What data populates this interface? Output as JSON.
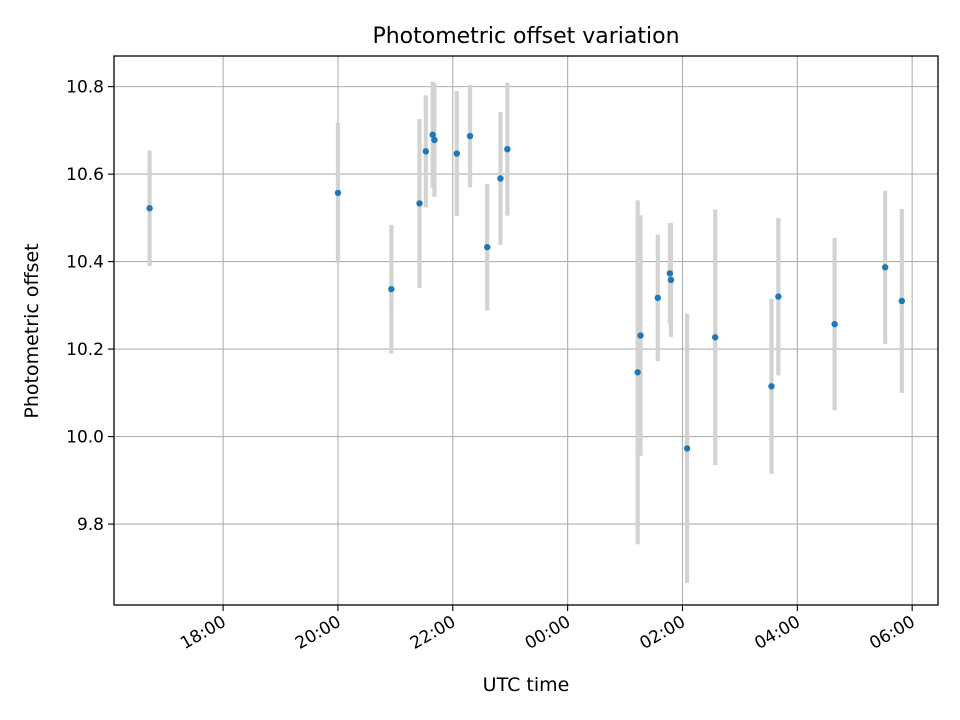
{
  "chart_data": {
    "type": "scatter",
    "title": "Photometric offset variation",
    "xlabel": "UTC time",
    "ylabel": "Photometric offset",
    "grid": true,
    "x_unit": "hours since 00:00 of the first day",
    "xlim": [
      16.1,
      30.45
    ],
    "ylim": [
      9.615,
      10.87
    ],
    "x_ticks": [
      {
        "value": 18,
        "label": "18:00"
      },
      {
        "value": 20,
        "label": "20:00"
      },
      {
        "value": 22,
        "label": "22:00"
      },
      {
        "value": 24,
        "label": "00:00"
      },
      {
        "value": 26,
        "label": "02:00"
      },
      {
        "value": 28,
        "label": "04:00"
      },
      {
        "value": 30,
        "label": "06:00"
      }
    ],
    "y_ticks": [
      {
        "value": 9.8,
        "label": "9.8"
      },
      {
        "value": 10.0,
        "label": "10.0"
      },
      {
        "value": 10.2,
        "label": "10.2"
      },
      {
        "value": 10.4,
        "label": "10.4"
      },
      {
        "value": 10.6,
        "label": "10.6"
      },
      {
        "value": 10.8,
        "label": "10.8"
      }
    ],
    "colors": {
      "point": "#1f77b4",
      "errorbar": "#d3d3d3",
      "grid": "#b0b0b0",
      "axes": "#000000"
    },
    "points": [
      {
        "x": 16.72,
        "y": 10.522,
        "err": 0.132
      },
      {
        "x": 20.0,
        "y": 10.557,
        "err": 0.16
      },
      {
        "x": 20.93,
        "y": 10.337,
        "err": 0.147
      },
      {
        "x": 21.42,
        "y": 10.533,
        "err": 0.193
      },
      {
        "x": 21.53,
        "y": 10.652,
        "err": 0.128
      },
      {
        "x": 21.65,
        "y": 10.69,
        "err": 0.121
      },
      {
        "x": 21.68,
        "y": 10.678,
        "err": 0.13
      },
      {
        "x": 22.07,
        "y": 10.647,
        "err": 0.143
      },
      {
        "x": 22.3,
        "y": 10.687,
        "err": 0.117
      },
      {
        "x": 22.6,
        "y": 10.433,
        "err": 0.145
      },
      {
        "x": 22.83,
        "y": 10.59,
        "err": 0.152
      },
      {
        "x": 22.95,
        "y": 10.657,
        "err": 0.152
      },
      {
        "x": 25.22,
        "y": 10.147,
        "err": 0.393
      },
      {
        "x": 25.27,
        "y": 10.231,
        "err": 0.275
      },
      {
        "x": 25.57,
        "y": 10.317,
        "err": 0.145
      },
      {
        "x": 25.78,
        "y": 10.373,
        "err": 0.115
      },
      {
        "x": 25.8,
        "y": 10.358,
        "err": 0.13
      },
      {
        "x": 26.08,
        "y": 9.973,
        "err": 0.308
      },
      {
        "x": 26.57,
        "y": 10.227,
        "err": 0.292
      },
      {
        "x": 27.55,
        "y": 10.115,
        "err": 0.2
      },
      {
        "x": 27.67,
        "y": 10.32,
        "err": 0.18
      },
      {
        "x": 28.65,
        "y": 10.257,
        "err": 0.197
      },
      {
        "x": 29.53,
        "y": 10.387,
        "err": 0.175
      },
      {
        "x": 29.82,
        "y": 10.31,
        "err": 0.21
      }
    ]
  }
}
